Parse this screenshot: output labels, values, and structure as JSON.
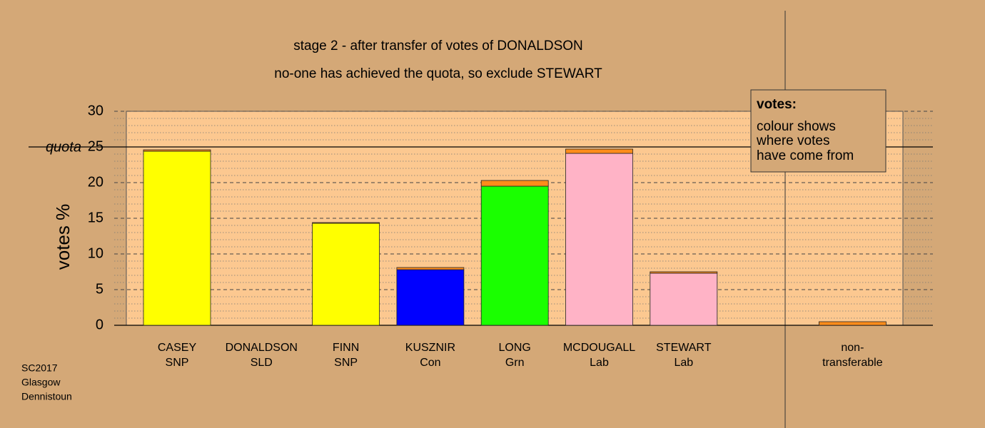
{
  "chart_data": {
    "type": "bar",
    "title": "stage 2 - after transfer of votes of DONALDSON",
    "subtitle": "no-one has achieved the quota, so exclude STEWART",
    "y_label": "votes %",
    "categories": [
      [
        "CASEY",
        "SNP"
      ],
      [
        "DONALDSON",
        "SLD"
      ],
      [
        "FINN",
        "SNP"
      ],
      [
        "KUSZNIR",
        "Con"
      ],
      [
        "LONG",
        "Grn"
      ],
      [
        "MCDOUGALL",
        "Lab"
      ],
      [
        "STEWART",
        "Lab"
      ],
      [
        "non-",
        "transferable"
      ]
    ],
    "series": [
      {
        "colors": [
          "#ffff00",
          "#ffff00",
          "#ffff00",
          "#0000ff",
          "#1aff00",
          "#ffb3c6",
          "#ffb3c6",
          "#ff8c1a"
        ],
        "values": [
          24.4,
          0,
          14.3,
          7.8,
          19.5,
          24.1,
          7.3,
          0
        ]
      },
      {
        "color": "#ff8c1a",
        "values": [
          0.2,
          0,
          0.1,
          0.3,
          0.8,
          0.6,
          0.2,
          0.5
        ]
      }
    ],
    "ylim": [
      0,
      30
    ],
    "yticks": [
      0,
      5,
      10,
      15,
      20,
      25,
      30
    ],
    "minor_yticks": [
      1,
      2,
      3,
      4,
      6,
      7,
      8,
      9,
      11,
      12,
      13,
      14,
      16,
      17,
      18,
      19,
      21,
      22,
      23,
      24,
      26,
      27,
      28,
      29
    ],
    "quota": {
      "value": 25,
      "label": "quota"
    },
    "legend": {
      "title": "votes:",
      "lines": [
        "colour shows",
        "where votes",
        "have come from"
      ]
    },
    "footer": [
      "SC2017",
      "Glasgow",
      "Dennistoun"
    ]
  }
}
